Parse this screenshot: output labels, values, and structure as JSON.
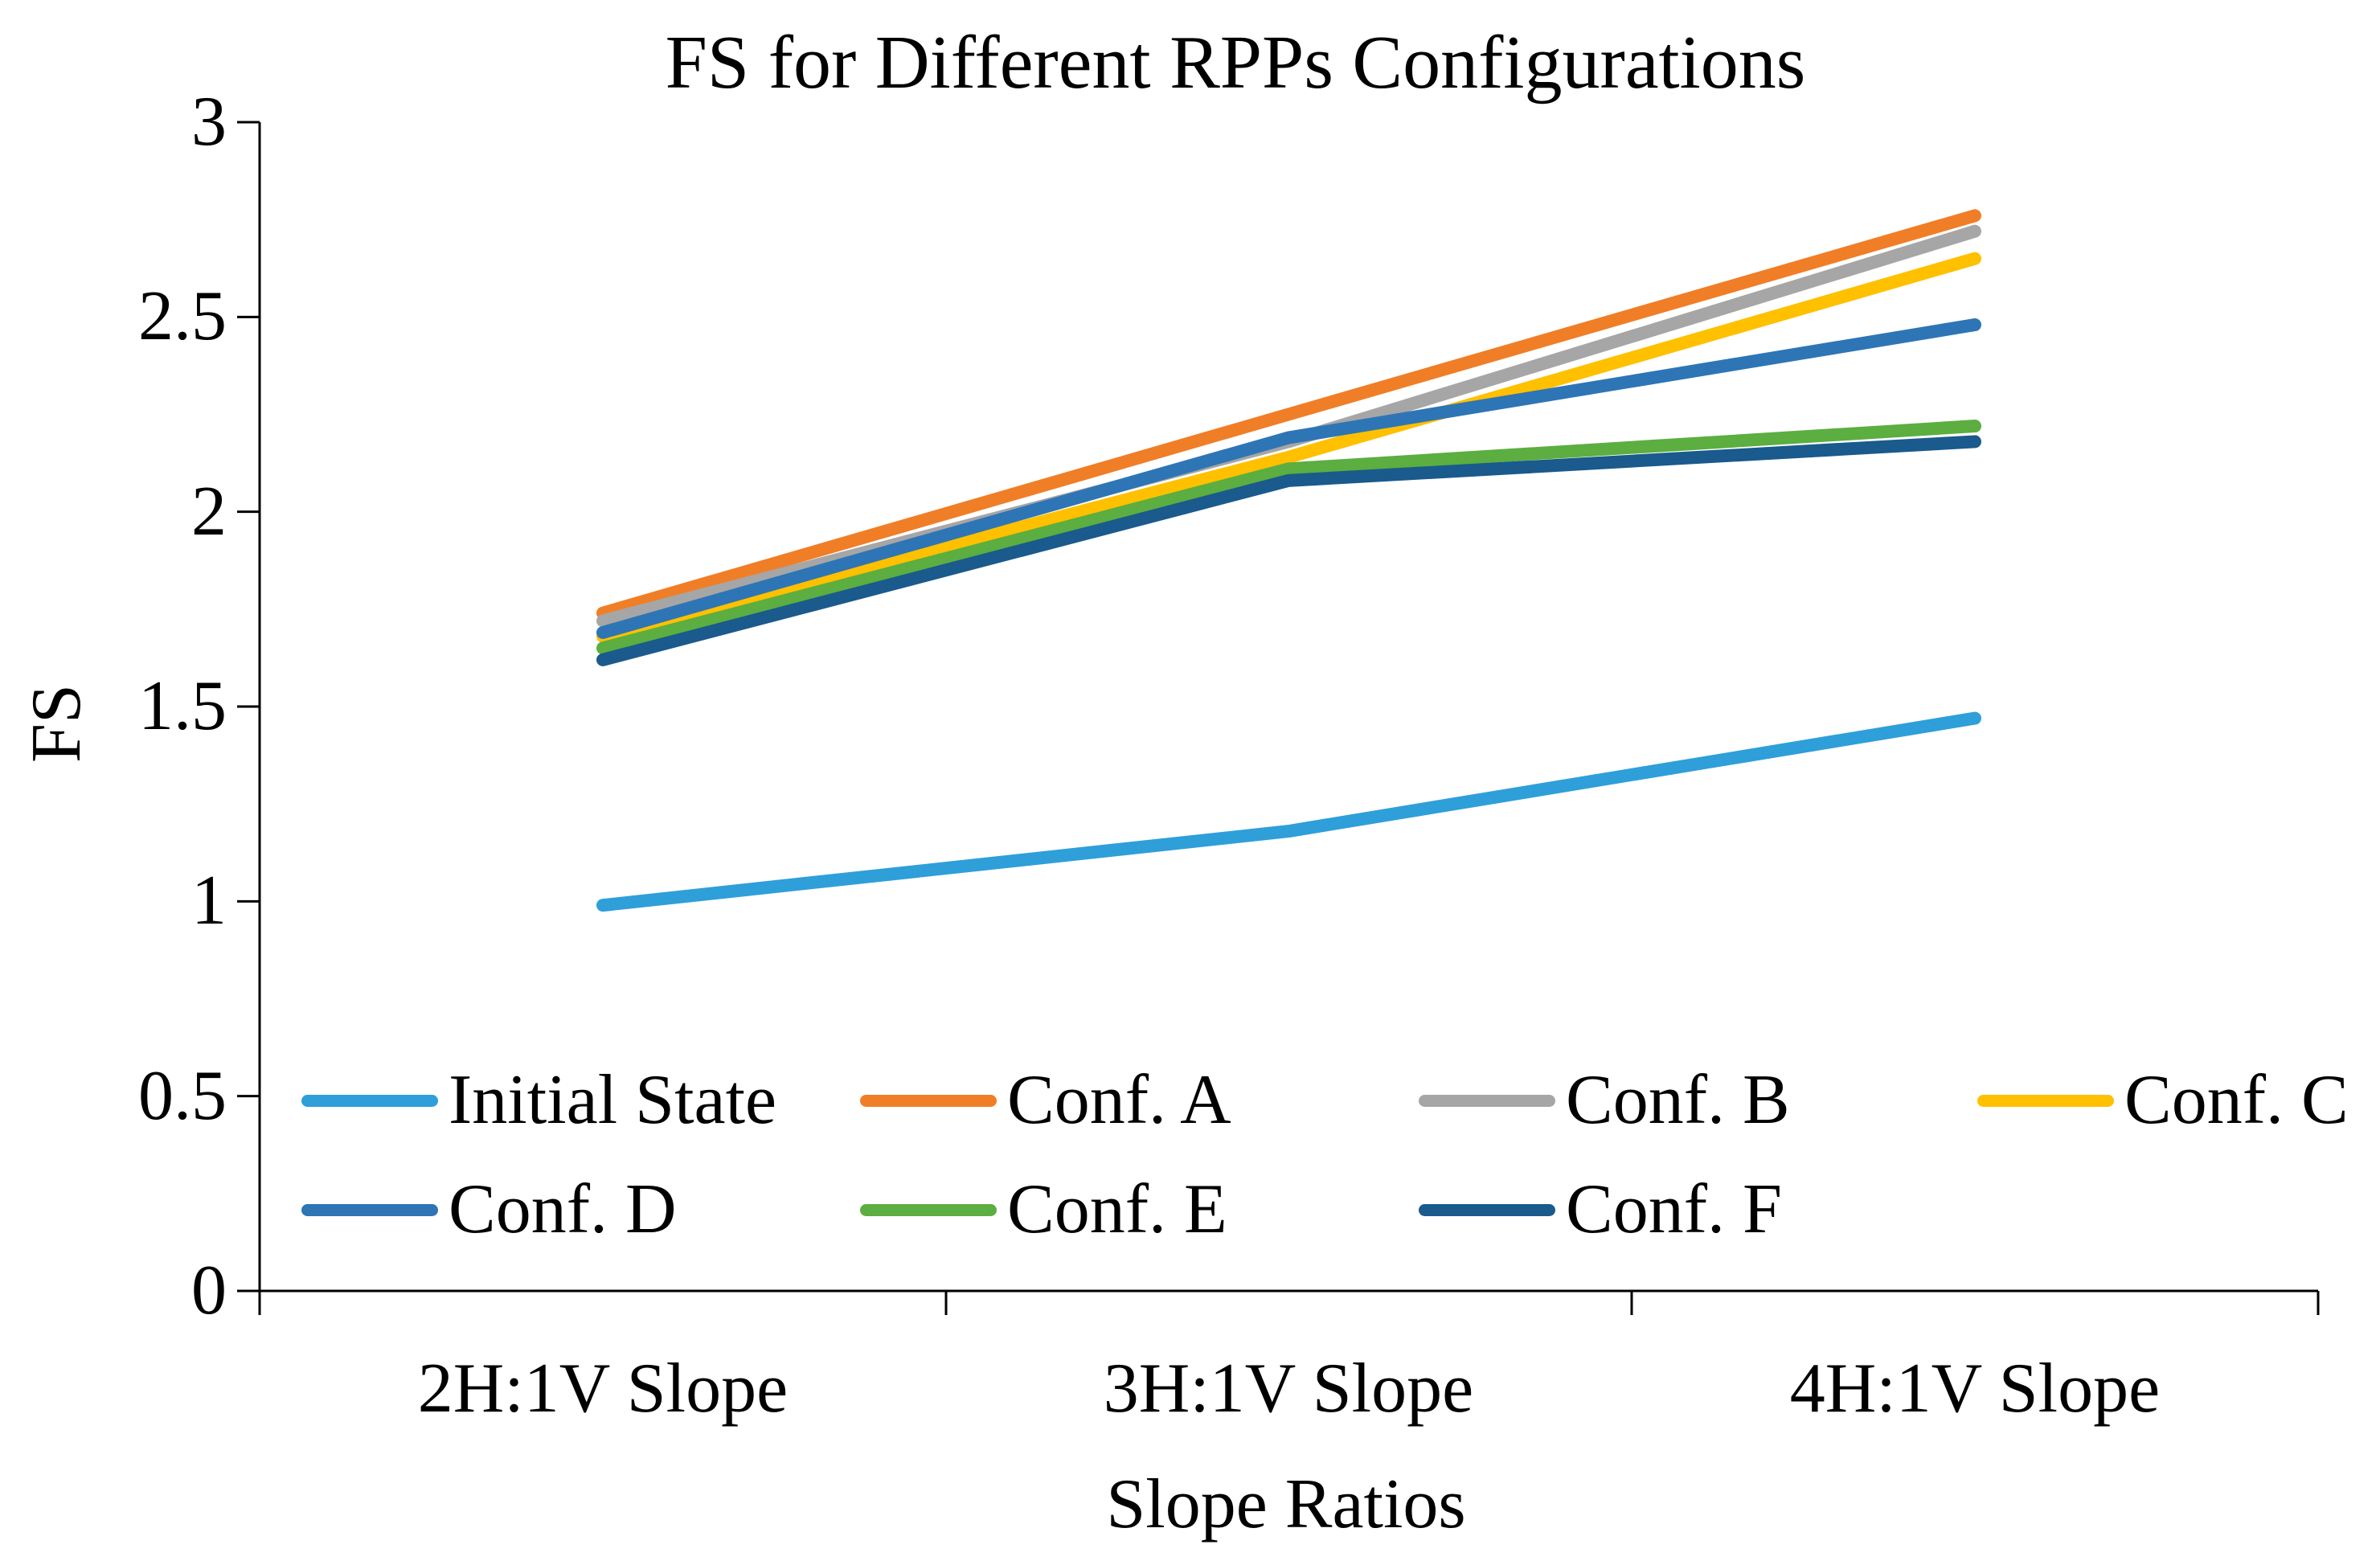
{
  "title": "FS for Different RPPs Configurations",
  "axes": {
    "y_title": "FS",
    "x_title": "Slope Ratios",
    "y_ticks": [
      "3",
      "2.5",
      "2",
      "1.5",
      "1",
      "0.5",
      "0"
    ]
  },
  "chart_data": {
    "type": "line",
    "title": "FS for Different RPPs Configurations",
    "xlabel": "Slope Ratios",
    "ylabel": "FS",
    "categories": [
      "2H:1V Slope",
      "3H:1V Slope",
      "4H:1V Slope"
    ],
    "ylim": [
      0,
      3
    ],
    "y_tick_step": 0.5,
    "grid": false,
    "legend_position": "bottom-inside-two-rows",
    "series": [
      {
        "name": "Initial State",
        "color": "#2E9FD9",
        "values": [
          0.99,
          1.18,
          1.47
        ]
      },
      {
        "name": "Conf. A",
        "color": "#F07E27",
        "values": [
          1.74,
          2.25,
          2.76
        ]
      },
      {
        "name": "Conf. B",
        "color": "#A6A6A6",
        "values": [
          1.72,
          2.18,
          2.72
        ]
      },
      {
        "name": "Conf. C",
        "color": "#FFC000",
        "values": [
          1.68,
          2.14,
          2.65
        ]
      },
      {
        "name": "Conf. D",
        "color": "#2E75B6",
        "values": [
          1.69,
          2.19,
          2.48
        ]
      },
      {
        "name": "Conf. E",
        "color": "#5BAE3F",
        "values": [
          1.65,
          2.11,
          2.22
        ]
      },
      {
        "name": "Conf. F",
        "color": "#1A5A8C",
        "values": [
          1.62,
          2.08,
          2.18
        ]
      }
    ]
  }
}
